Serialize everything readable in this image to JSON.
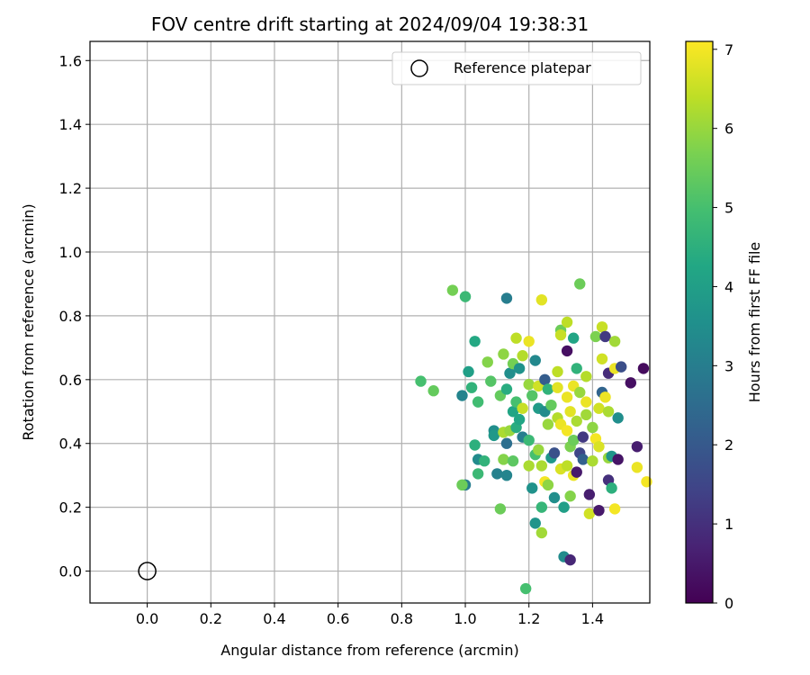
{
  "chart_data": {
    "type": "scatter",
    "title": "FOV centre drift starting at 2024/09/04 19:38:31",
    "xlabel": "Angular distance from reference (arcmin)",
    "ylabel": "Rotation from reference (arcmin)",
    "xlim": [
      -0.18,
      1.58
    ],
    "ylim": [
      -0.1,
      1.66
    ],
    "xticks": [
      "0.0",
      "0.2",
      "0.4",
      "0.6",
      "0.8",
      "1.0",
      "1.2",
      "1.4"
    ],
    "yticks": [
      "0.0",
      "0.2",
      "0.4",
      "0.6",
      "0.8",
      "1.0",
      "1.2",
      "1.4",
      "1.6"
    ],
    "grid": true,
    "legend": {
      "position": "top-right",
      "entries": [
        "Reference platepar"
      ]
    },
    "reference_point": {
      "x": 0.0,
      "y": 0.0,
      "label": "Reference platepar"
    },
    "colorbar": {
      "label": "Hours from first FF file",
      "colormap": "viridis",
      "range": [
        0,
        7.1
      ],
      "ticks": [
        "0",
        "1",
        "2",
        "3",
        "4",
        "5",
        "6",
        "7"
      ]
    },
    "series": [
      {
        "points": [
          {
            "x": 0.86,
            "y": 0.595,
            "c": 5.0
          },
          {
            "x": 0.96,
            "y": 0.88,
            "c": 5.6
          },
          {
            "x": 0.9,
            "y": 0.565,
            "c": 5.4
          },
          {
            "x": 1.0,
            "y": 0.86,
            "c": 4.8
          },
          {
            "x": 0.99,
            "y": 0.55,
            "c": 3.2
          },
          {
            "x": 1.01,
            "y": 0.625,
            "c": 4.0
          },
          {
            "x": 1.0,
            "y": 0.27,
            "c": 3.0
          },
          {
            "x": 0.99,
            "y": 0.27,
            "c": 5.5
          },
          {
            "x": 1.02,
            "y": 0.575,
            "c": 4.6
          },
          {
            "x": 1.03,
            "y": 0.72,
            "c": 4.3
          },
          {
            "x": 1.03,
            "y": 0.395,
            "c": 4.5
          },
          {
            "x": 1.04,
            "y": 0.53,
            "c": 4.9
          },
          {
            "x": 1.04,
            "y": 0.35,
            "c": 3.4
          },
          {
            "x": 1.04,
            "y": 0.305,
            "c": 4.8
          },
          {
            "x": 1.06,
            "y": 0.345,
            "c": 4.6
          },
          {
            "x": 1.07,
            "y": 0.655,
            "c": 5.8
          },
          {
            "x": 1.08,
            "y": 0.595,
            "c": 5.2
          },
          {
            "x": 1.09,
            "y": 0.44,
            "c": 3.5
          },
          {
            "x": 1.09,
            "y": 0.425,
            "c": 3.8
          },
          {
            "x": 1.1,
            "y": 0.305,
            "c": 3.1
          },
          {
            "x": 1.11,
            "y": 0.55,
            "c": 5.4
          },
          {
            "x": 1.11,
            "y": 0.195,
            "c": 5.5
          },
          {
            "x": 1.12,
            "y": 0.68,
            "c": 5.9
          },
          {
            "x": 1.12,
            "y": 0.35,
            "c": 5.8
          },
          {
            "x": 1.12,
            "y": 0.435,
            "c": 6.2
          },
          {
            "x": 1.13,
            "y": 0.855,
            "c": 3.0
          },
          {
            "x": 1.13,
            "y": 0.57,
            "c": 4.4
          },
          {
            "x": 1.13,
            "y": 0.4,
            "c": 2.6
          },
          {
            "x": 1.13,
            "y": 0.3,
            "c": 3.2
          },
          {
            "x": 1.14,
            "y": 0.62,
            "c": 3.5
          },
          {
            "x": 1.14,
            "y": 0.44,
            "c": 6.0
          },
          {
            "x": 1.15,
            "y": 0.65,
            "c": 5.6
          },
          {
            "x": 1.15,
            "y": 0.345,
            "c": 5.3
          },
          {
            "x": 1.15,
            "y": 0.5,
            "c": 4.2
          },
          {
            "x": 1.16,
            "y": 0.73,
            "c": 6.4
          },
          {
            "x": 1.16,
            "y": 0.53,
            "c": 5.0
          },
          {
            "x": 1.16,
            "y": 0.45,
            "c": 4.4
          },
          {
            "x": 1.17,
            "y": 0.635,
            "c": 3.6
          },
          {
            "x": 1.17,
            "y": 0.475,
            "c": 4.2
          },
          {
            "x": 1.18,
            "y": 0.675,
            "c": 6.3
          },
          {
            "x": 1.18,
            "y": 0.42,
            "c": 3.0
          },
          {
            "x": 1.18,
            "y": 0.51,
            "c": 6.5
          },
          {
            "x": 1.19,
            "y": -0.055,
            "c": 5.0
          },
          {
            "x": 1.2,
            "y": 0.72,
            "c": 6.9
          },
          {
            "x": 1.2,
            "y": 0.585,
            "c": 6.0
          },
          {
            "x": 1.2,
            "y": 0.41,
            "c": 4.8
          },
          {
            "x": 1.2,
            "y": 0.33,
            "c": 6.2
          },
          {
            "x": 1.21,
            "y": 0.55,
            "c": 5.2
          },
          {
            "x": 1.21,
            "y": 0.26,
            "c": 3.6
          },
          {
            "x": 1.22,
            "y": 0.66,
            "c": 3.3
          },
          {
            "x": 1.22,
            "y": 0.365,
            "c": 5.0
          },
          {
            "x": 1.22,
            "y": 0.15,
            "c": 3.7
          },
          {
            "x": 1.23,
            "y": 0.58,
            "c": 6.6
          },
          {
            "x": 1.23,
            "y": 0.51,
            "c": 3.9
          },
          {
            "x": 1.23,
            "y": 0.38,
            "c": 6.0
          },
          {
            "x": 1.24,
            "y": 0.85,
            "c": 6.8
          },
          {
            "x": 1.24,
            "y": 0.33,
            "c": 6.2
          },
          {
            "x": 1.24,
            "y": 0.2,
            "c": 4.7
          },
          {
            "x": 1.24,
            "y": 0.12,
            "c": 6.1
          },
          {
            "x": 1.25,
            "y": 0.6,
            "c": 2.1
          },
          {
            "x": 1.25,
            "y": 0.5,
            "c": 3.4
          },
          {
            "x": 1.25,
            "y": 0.28,
            "c": 7.0
          },
          {
            "x": 1.26,
            "y": 0.57,
            "c": 4.6
          },
          {
            "x": 1.26,
            "y": 0.46,
            "c": 6.0
          },
          {
            "x": 1.26,
            "y": 0.27,
            "c": 5.9
          },
          {
            "x": 1.27,
            "y": 0.52,
            "c": 5.4
          },
          {
            "x": 1.27,
            "y": 0.355,
            "c": 3.8
          },
          {
            "x": 1.28,
            "y": 0.37,
            "c": 1.8
          },
          {
            "x": 1.28,
            "y": 0.23,
            "c": 3.5
          },
          {
            "x": 1.29,
            "y": 0.625,
            "c": 6.4
          },
          {
            "x": 1.29,
            "y": 0.575,
            "c": 6.8
          },
          {
            "x": 1.29,
            "y": 0.48,
            "c": 6.3
          },
          {
            "x": 1.3,
            "y": 0.755,
            "c": 5.5
          },
          {
            "x": 1.3,
            "y": 0.74,
            "c": 6.5
          },
          {
            "x": 1.3,
            "y": 0.46,
            "c": 6.9
          },
          {
            "x": 1.3,
            "y": 0.32,
            "c": 6.7
          },
          {
            "x": 1.31,
            "y": 0.2,
            "c": 4.0
          },
          {
            "x": 1.31,
            "y": 0.045,
            "c": 3.4
          },
          {
            "x": 1.32,
            "y": 0.78,
            "c": 6.4
          },
          {
            "x": 1.32,
            "y": 0.69,
            "c": 0.3
          },
          {
            "x": 1.32,
            "y": 0.545,
            "c": 6.9
          },
          {
            "x": 1.32,
            "y": 0.44,
            "c": 7.0
          },
          {
            "x": 1.32,
            "y": 0.33,
            "c": 6.4
          },
          {
            "x": 1.33,
            "y": 0.5,
            "c": 6.8
          },
          {
            "x": 1.33,
            "y": 0.39,
            "c": 5.7
          },
          {
            "x": 1.33,
            "y": 0.235,
            "c": 5.8
          },
          {
            "x": 1.33,
            "y": 0.035,
            "c": 0.8
          },
          {
            "x": 1.34,
            "y": 0.73,
            "c": 4.2
          },
          {
            "x": 1.34,
            "y": 0.58,
            "c": 6.9
          },
          {
            "x": 1.34,
            "y": 0.41,
            "c": 5.5
          },
          {
            "x": 1.34,
            "y": 0.3,
            "c": 6.9
          },
          {
            "x": 1.35,
            "y": 0.635,
            "c": 4.6
          },
          {
            "x": 1.35,
            "y": 0.47,
            "c": 6.2
          },
          {
            "x": 1.35,
            "y": 0.31,
            "c": 0.5
          },
          {
            "x": 1.36,
            "y": 0.9,
            "c": 5.5
          },
          {
            "x": 1.36,
            "y": 0.56,
            "c": 6.0
          },
          {
            "x": 1.36,
            "y": 0.37,
            "c": 1.5
          },
          {
            "x": 1.37,
            "y": 0.42,
            "c": 1.2
          },
          {
            "x": 1.37,
            "y": 0.35,
            "c": 2.2
          },
          {
            "x": 1.38,
            "y": 0.61,
            "c": 6.3
          },
          {
            "x": 1.38,
            "y": 0.53,
            "c": 6.9
          },
          {
            "x": 1.38,
            "y": 0.49,
            "c": 6.1
          },
          {
            "x": 1.39,
            "y": 0.18,
            "c": 6.6
          },
          {
            "x": 1.39,
            "y": 0.24,
            "c": 0.6
          },
          {
            "x": 1.4,
            "y": 0.45,
            "c": 5.9
          },
          {
            "x": 1.4,
            "y": 0.345,
            "c": 6.2
          },
          {
            "x": 1.41,
            "y": 0.735,
            "c": 5.7
          },
          {
            "x": 1.41,
            "y": 0.415,
            "c": 7.0
          },
          {
            "x": 1.42,
            "y": 0.51,
            "c": 6.6
          },
          {
            "x": 1.42,
            "y": 0.39,
            "c": 6.7
          },
          {
            "x": 1.42,
            "y": 0.19,
            "c": 0.5
          },
          {
            "x": 1.43,
            "y": 0.765,
            "c": 6.5
          },
          {
            "x": 1.43,
            "y": 0.665,
            "c": 6.6
          },
          {
            "x": 1.43,
            "y": 0.56,
            "c": 2.3
          },
          {
            "x": 1.44,
            "y": 0.735,
            "c": 1.2
          },
          {
            "x": 1.44,
            "y": 0.545,
            "c": 6.9
          },
          {
            "x": 1.45,
            "y": 0.62,
            "c": 0.9
          },
          {
            "x": 1.45,
            "y": 0.5,
            "c": 6.2
          },
          {
            "x": 1.45,
            "y": 0.355,
            "c": 6.0
          },
          {
            "x": 1.45,
            "y": 0.285,
            "c": 1.0
          },
          {
            "x": 1.46,
            "y": 0.26,
            "c": 4.5
          },
          {
            "x": 1.46,
            "y": 0.36,
            "c": 3.7
          },
          {
            "x": 1.47,
            "y": 0.72,
            "c": 6.1
          },
          {
            "x": 1.47,
            "y": 0.635,
            "c": 6.9
          },
          {
            "x": 1.48,
            "y": 0.48,
            "c": 3.5
          },
          {
            "x": 1.48,
            "y": 0.35,
            "c": 0.4
          },
          {
            "x": 1.47,
            "y": 0.195,
            "c": 7.0
          },
          {
            "x": 1.49,
            "y": 0.64,
            "c": 1.7
          },
          {
            "x": 1.52,
            "y": 0.59,
            "c": 0.3
          },
          {
            "x": 1.54,
            "y": 0.39,
            "c": 0.6
          },
          {
            "x": 1.54,
            "y": 0.325,
            "c": 6.9
          },
          {
            "x": 1.56,
            "y": 0.635,
            "c": 0.2
          },
          {
            "x": 1.57,
            "y": 0.28,
            "c": 7.0
          }
        ]
      }
    ]
  }
}
